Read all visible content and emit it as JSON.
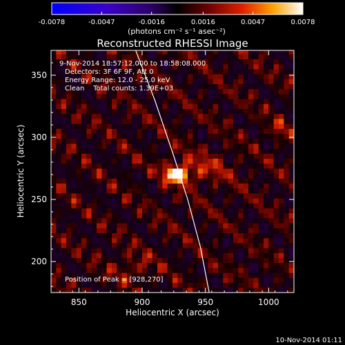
{
  "chart_data": {
    "type": "heatmap",
    "title": "Reconstructed RHESSI Image",
    "xlabel": "Heliocentric X (arcsec)",
    "ylabel": "Heliocentric Y (arcsec)",
    "xlim": [
      828,
      1020
    ],
    "ylim": [
      175,
      370
    ],
    "x_ticks": [
      "850",
      "900",
      "950",
      "1000"
    ],
    "y_ticks": [
      "200",
      "250",
      "300",
      "350"
    ],
    "x_tick_values": [
      850,
      900,
      950,
      1000
    ],
    "y_tick_values": [
      200,
      250,
      300,
      350
    ],
    "colorbar": {
      "min": -0.0078,
      "max": 0.0078,
      "ticks": [
        "-0.0078",
        "-0.0047",
        "-0.0016",
        "0.0016",
        "0.0047",
        "0.0078"
      ],
      "tick_values": [
        -0.0078,
        -0.0047,
        -0.0016,
        0.0016,
        0.0047,
        0.0078
      ],
      "unit_label": "(photons cm⁻² s⁻¹ asec⁻²)"
    },
    "annotations": [
      "9-Nov-2014 18:57:12.000 to 18:58:08.000",
      "Detectors: 3F 6F 9F, Att 0",
      "Energy Range: 12.0 - 25.0 keV",
      "Clean    Total counts: 1.39E+03"
    ],
    "peak_label": "Position of Peak = [928,270]",
    "peak": [
      928,
      270
    ],
    "limb_curve": [
      [
        893,
        375
      ],
      [
        910,
        330
      ],
      [
        925,
        285
      ],
      [
        936,
        250
      ],
      [
        946,
        212
      ],
      [
        953,
        175
      ]
    ],
    "grid": false
  },
  "footer": {
    "date": "10-Nov-2014 01:11"
  }
}
